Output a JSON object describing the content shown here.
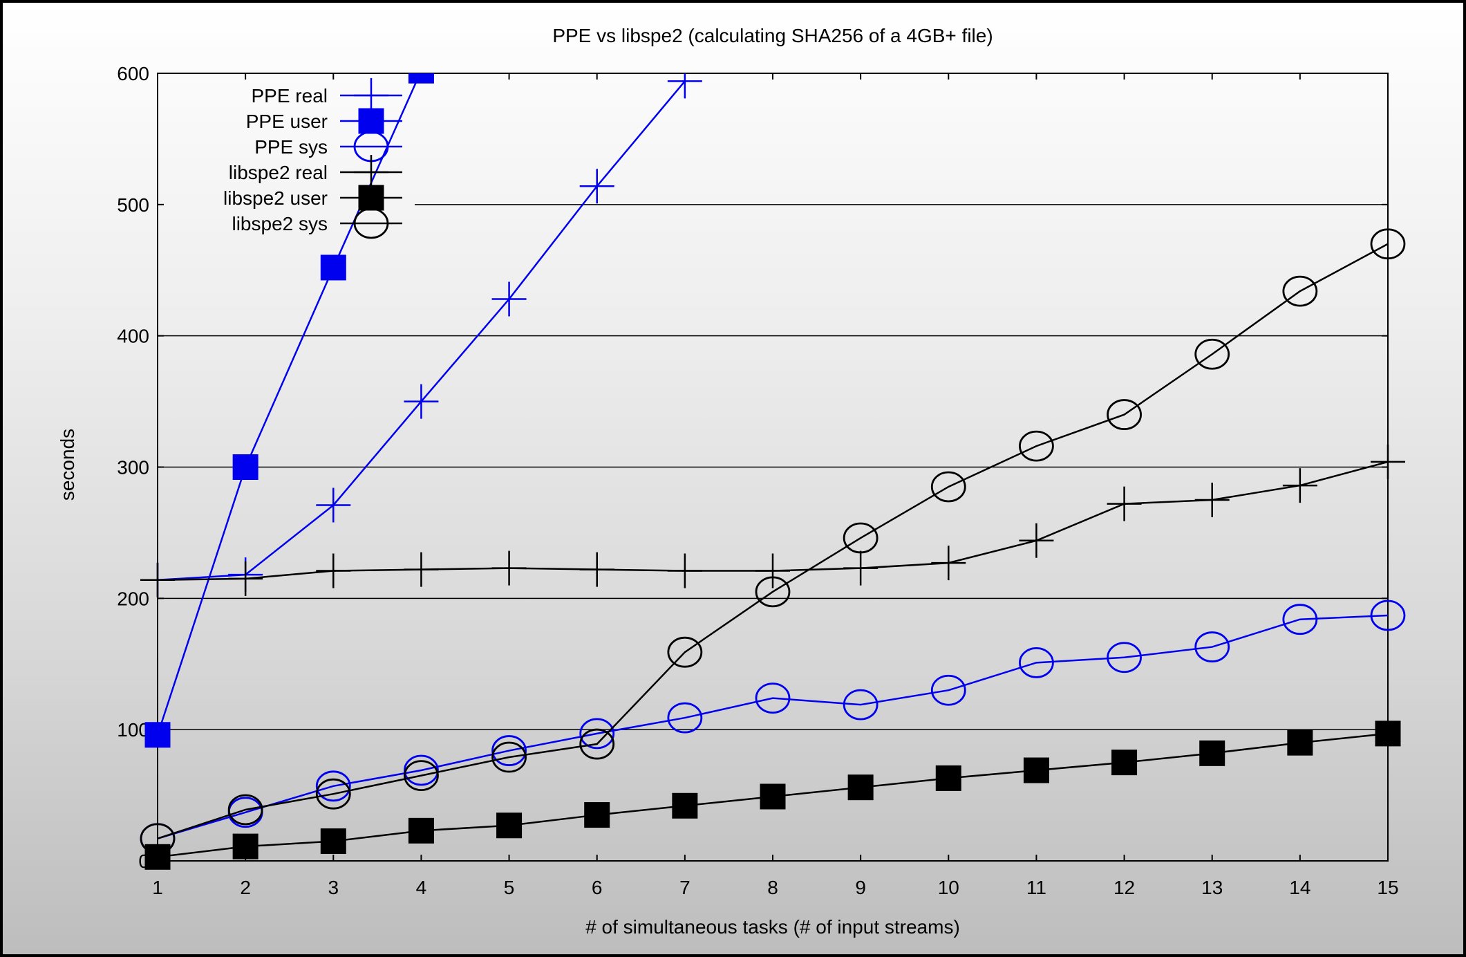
{
  "chart_data": {
    "type": "line",
    "title": "PPE vs libspe2 (calculating SHA256 of a 4GB+ file)",
    "xlabel": "# of simultaneous tasks (# of input streams)",
    "ylabel": "seconds",
    "xlim": [
      1,
      15
    ],
    "ylim": [
      0,
      600
    ],
    "x_ticks": [
      1,
      2,
      3,
      4,
      5,
      6,
      7,
      8,
      9,
      10,
      11,
      12,
      13,
      14,
      15
    ],
    "y_ticks": [
      0,
      100,
      200,
      300,
      400,
      500,
      600
    ],
    "grid": "horizontal",
    "legend_position": "top-left",
    "series": [
      {
        "name": "PPE real",
        "color": "#0000ee",
        "marker": "plus",
        "x": [
          1,
          2,
          3,
          4,
          5,
          6,
          7
        ],
        "y": [
          214,
          218,
          271,
          350,
          428,
          514,
          594
        ]
      },
      {
        "name": "PPE user",
        "color": "#0000ee",
        "marker": "filled-square",
        "x": [
          1,
          2,
          3,
          4
        ],
        "y": [
          96,
          300,
          452,
          602
        ]
      },
      {
        "name": "PPE sys",
        "color": "#0000ee",
        "marker": "circle",
        "x": [
          1,
          2,
          3,
          4,
          5,
          6,
          7,
          8,
          9,
          10,
          11,
          12,
          13,
          14,
          15
        ],
        "y": [
          17,
          37,
          57,
          69,
          84,
          97,
          109,
          124,
          119,
          130,
          151,
          155,
          163,
          184,
          187
        ]
      },
      {
        "name": "libspe2 real",
        "color": "#000000",
        "marker": "plus",
        "x": [
          1,
          2,
          3,
          4,
          5,
          6,
          7,
          8,
          9,
          10,
          11,
          12,
          13,
          14,
          15
        ],
        "y": [
          214,
          215,
          221,
          222,
          223,
          222,
          221,
          221,
          223,
          227,
          244,
          272,
          275,
          286,
          304
        ]
      },
      {
        "name": "libspe2 user",
        "color": "#000000",
        "marker": "filled-square",
        "x": [
          1,
          2,
          3,
          4,
          5,
          6,
          7,
          8,
          9,
          10,
          11,
          12,
          13,
          14,
          15
        ],
        "y": [
          3,
          11,
          15,
          23,
          27,
          35,
          42,
          49,
          56,
          63,
          69,
          75,
          82,
          90,
          97
        ]
      },
      {
        "name": "libspe2 sys",
        "color": "#000000",
        "marker": "circle",
        "x": [
          1,
          2,
          3,
          4,
          5,
          6,
          7,
          8,
          9,
          10,
          11,
          12,
          13,
          14,
          15
        ],
        "y": [
          17,
          39,
          51,
          65,
          79,
          89,
          159,
          205,
          246,
          285,
          316,
          340,
          386,
          434,
          470
        ]
      }
    ]
  }
}
